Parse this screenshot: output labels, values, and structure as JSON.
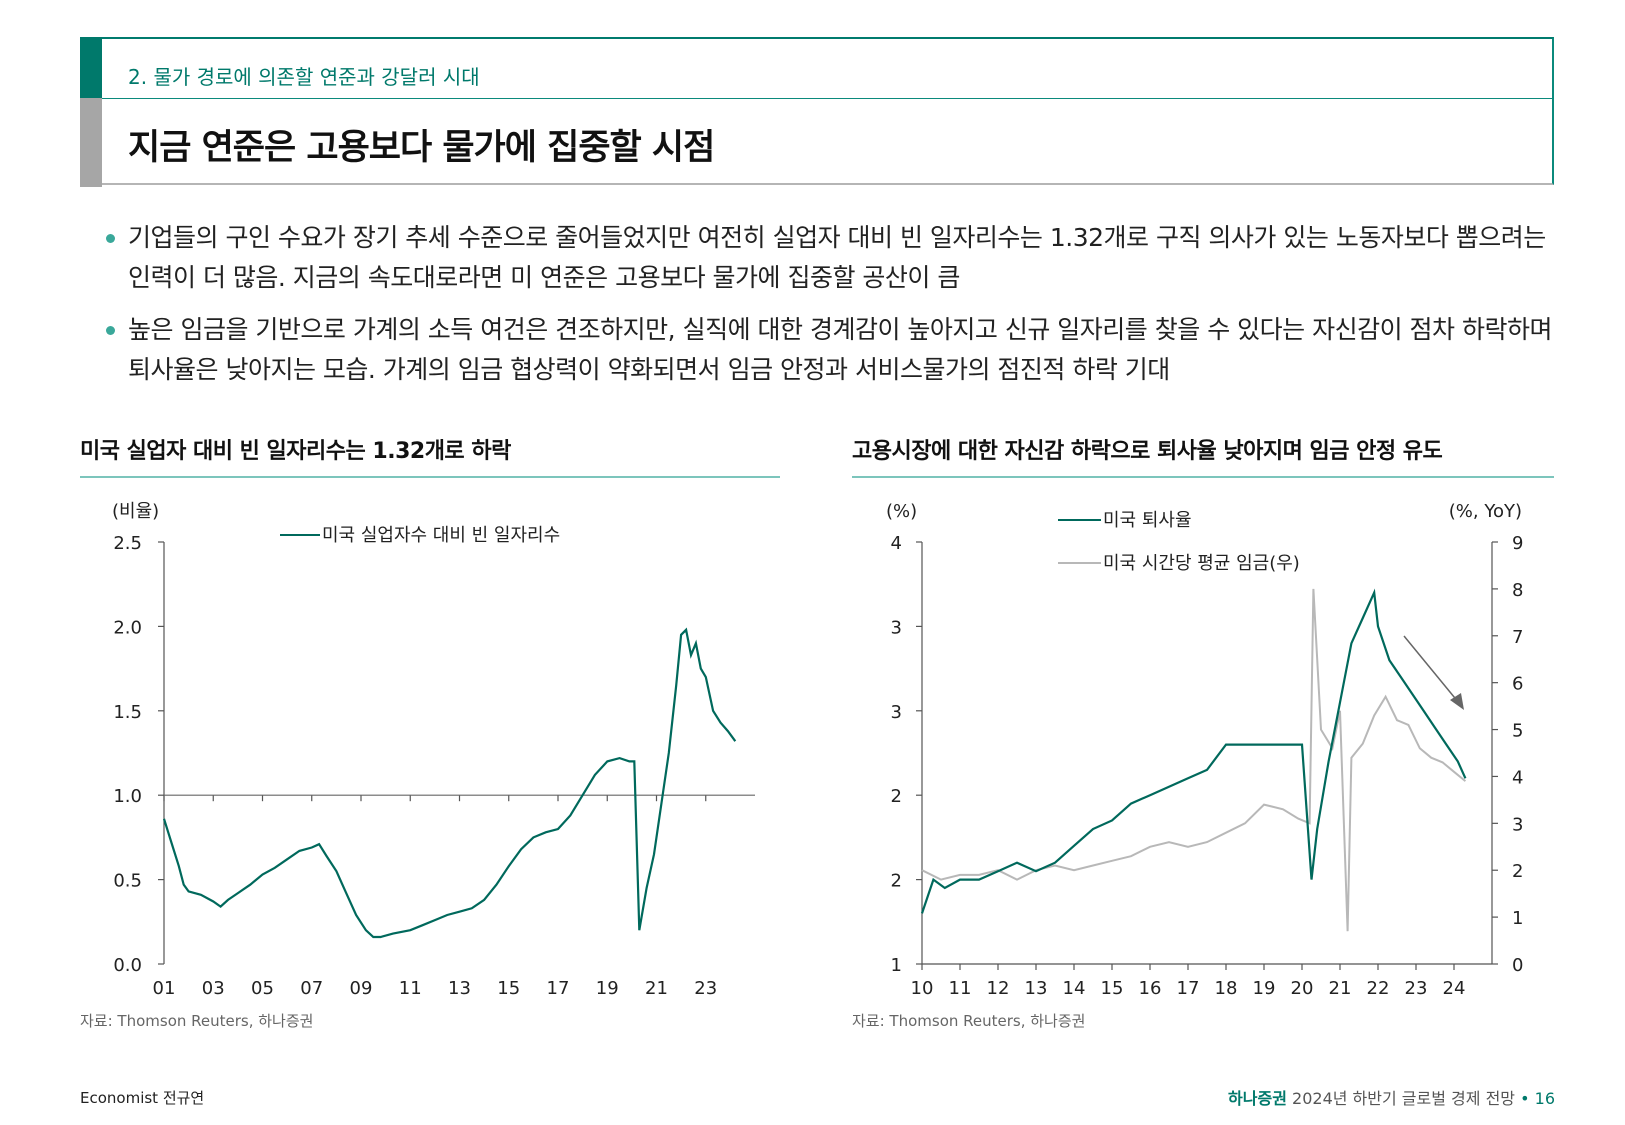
{
  "header": {
    "subtitle": "2. 물가 경로에 의존할 연준과 강달러 시대",
    "title": "지금 연준은 고용보다 물가에 집중할 시점"
  },
  "bullets": [
    "기업들의 구인 수요가 장기 추세 수준으로 줄어들었지만 여전히 실업자 대비 빈 일자리수는 1.32개로 구직 의사가 있는 노동자보다 뽑으려는 인력이 더 많음. 지금의 속도대로라면 미 연준은 고용보다 물가에 집중할 공산이 큼",
    "높은 임금을 기반으로 가계의 소득 여건은 견조하지만, 실직에 대한 경계감이 높아지고 신규 일자리를 찾을 수 있다는 자신감이 점차 하락하며 퇴사율은 낮아지는 모습. 가계의 임금 협상력이 약화되면서 임금 안정과 서비스물가의 점진적 하락 기대"
  ],
  "chart1": {
    "title": "미국 실업자 대비 빈 일자리수는 1.32개로 하락",
    "source": "자료: Thomson Reuters, 하나증권"
  },
  "chart2": {
    "title": "고용시장에 대한 자신감 하락으로 퇴사율 낮아지며 임금 안정 유도",
    "source": "자료: Thomson Reuters, 하나증권"
  },
  "footer": {
    "author": "Economist 전규연",
    "brand": "하나증권",
    "doc": "2024년 하반기 글로벌 경제 전망",
    "sep": "•",
    "page": "16"
  },
  "colors": {
    "teal": "#00695c",
    "gray": "#b8b8b8",
    "accent": "#00796b"
  },
  "chart_data": [
    {
      "type": "line",
      "title": "미국 실업자 대비 빈 일자리수는 1.32개로 하락",
      "unit_label": "(비율)",
      "ylim": [
        0,
        2.5
      ],
      "yticks": [
        "0.0",
        "0.5",
        "1.0",
        "1.5",
        "2.0",
        "2.5"
      ],
      "xlim": [
        2001,
        2025
      ],
      "xticks": [
        "01",
        "03",
        "05",
        "07",
        "09",
        "11",
        "13",
        "15",
        "17",
        "19",
        "21",
        "23"
      ],
      "reference_line": 1.0,
      "series": [
        {
          "name": "미국 실업자수 대비 빈 일자리수",
          "x": [
            2001.0,
            2001.3,
            2001.6,
            2001.8,
            2002.0,
            2002.5,
            2003.0,
            2003.3,
            2003.6,
            2004.0,
            2004.5,
            2005.0,
            2005.5,
            2006.0,
            2006.5,
            2007.0,
            2007.3,
            2007.6,
            2008.0,
            2008.4,
            2008.8,
            2009.2,
            2009.5,
            2009.8,
            2010.3,
            2011.0,
            2011.5,
            2012.0,
            2012.5,
            2013.0,
            2013.5,
            2014.0,
            2014.5,
            2015.0,
            2015.5,
            2016.0,
            2016.5,
            2017.0,
            2017.5,
            2018.0,
            2018.5,
            2019.0,
            2019.5,
            2019.9,
            2020.1,
            2020.3,
            2020.6,
            2020.9,
            2021.2,
            2021.5,
            2021.8,
            2022.0,
            2022.2,
            2022.4,
            2022.6,
            2022.8,
            2023.0,
            2023.3,
            2023.6,
            2023.9,
            2024.2
          ],
          "values": [
            0.86,
            0.72,
            0.58,
            0.47,
            0.43,
            0.41,
            0.37,
            0.34,
            0.38,
            0.42,
            0.47,
            0.53,
            0.57,
            0.62,
            0.67,
            0.69,
            0.71,
            0.64,
            0.55,
            0.42,
            0.29,
            0.2,
            0.16,
            0.16,
            0.18,
            0.2,
            0.23,
            0.26,
            0.29,
            0.31,
            0.33,
            0.38,
            0.47,
            0.58,
            0.68,
            0.75,
            0.78,
            0.8,
            0.88,
            1.0,
            1.12,
            1.2,
            1.22,
            1.2,
            1.2,
            0.2,
            0.45,
            0.65,
            0.95,
            1.25,
            1.65,
            1.95,
            1.98,
            1.83,
            1.9,
            1.75,
            1.7,
            1.5,
            1.43,
            1.38,
            1.32
          ]
        }
      ]
    },
    {
      "type": "line",
      "title": "고용시장에 대한 자신감 하락으로 퇴사율 낮아지며 임금 안정 유도",
      "left_unit": "(%)",
      "right_unit": "(%, YoY)",
      "left_yticks": [
        "1",
        "2",
        "2",
        "3",
        "3",
        "4"
      ],
      "left_ylim": [
        1.0,
        3.5
      ],
      "right_yticks": [
        "0",
        "1",
        "2",
        "3",
        "4",
        "5",
        "6",
        "7",
        "8",
        "9"
      ],
      "right_ylim": [
        0,
        9
      ],
      "xlim": [
        2010,
        2025
      ],
      "xticks": [
        "10",
        "11",
        "12",
        "13",
        "14",
        "15",
        "16",
        "17",
        "18",
        "19",
        "20",
        "21",
        "22",
        "23",
        "24"
      ],
      "annotation": "downward arrow 2022-2024",
      "series": [
        {
          "name": "미국 퇴사율",
          "axis": "left",
          "x": [
            2010.0,
            2010.3,
            2010.6,
            2011.0,
            2011.5,
            2012.0,
            2012.5,
            2013.0,
            2013.5,
            2014.0,
            2014.5,
            2015.0,
            2015.5,
            2016.0,
            2016.5,
            2017.0,
            2017.5,
            2018.0,
            2018.5,
            2019.0,
            2019.5,
            2020.0,
            2020.25,
            2020.4,
            2020.7,
            2021.0,
            2021.3,
            2021.6,
            2021.9,
            2022.0,
            2022.3,
            2022.6,
            2022.9,
            2023.2,
            2023.5,
            2023.8,
            2024.1,
            2024.3
          ],
          "values": [
            1.3,
            1.5,
            1.45,
            1.5,
            1.5,
            1.55,
            1.6,
            1.55,
            1.6,
            1.7,
            1.8,
            1.85,
            1.95,
            2.0,
            2.05,
            2.1,
            2.15,
            2.3,
            2.3,
            2.3,
            2.3,
            2.3,
            1.5,
            1.8,
            2.2,
            2.55,
            2.9,
            3.05,
            3.2,
            3.0,
            2.8,
            2.7,
            2.6,
            2.5,
            2.4,
            2.3,
            2.2,
            2.1
          ]
        },
        {
          "name": "미국 시간당 평균 임금(우)",
          "axis": "right",
          "x": [
            2010.0,
            2010.5,
            2011.0,
            2011.5,
            2012.0,
            2012.5,
            2013.0,
            2013.5,
            2014.0,
            2014.5,
            2015.0,
            2015.5,
            2016.0,
            2016.5,
            2017.0,
            2017.5,
            2018.0,
            2018.5,
            2019.0,
            2019.5,
            2019.9,
            2020.2,
            2020.3,
            2020.5,
            2020.8,
            2021.0,
            2021.2,
            2021.3,
            2021.6,
            2021.9,
            2022.2,
            2022.5,
            2022.8,
            2023.1,
            2023.4,
            2023.7,
            2024.0,
            2024.3
          ],
          "values": [
            2.0,
            1.8,
            1.9,
            1.9,
            2.0,
            1.8,
            2.0,
            2.1,
            2.0,
            2.1,
            2.2,
            2.3,
            2.5,
            2.6,
            2.5,
            2.6,
            2.8,
            3.0,
            3.4,
            3.3,
            3.1,
            3.0,
            8.0,
            5.0,
            4.6,
            5.4,
            0.7,
            4.4,
            4.7,
            5.3,
            5.7,
            5.2,
            5.1,
            4.6,
            4.4,
            4.3,
            4.1,
            3.9
          ]
        }
      ]
    }
  ]
}
